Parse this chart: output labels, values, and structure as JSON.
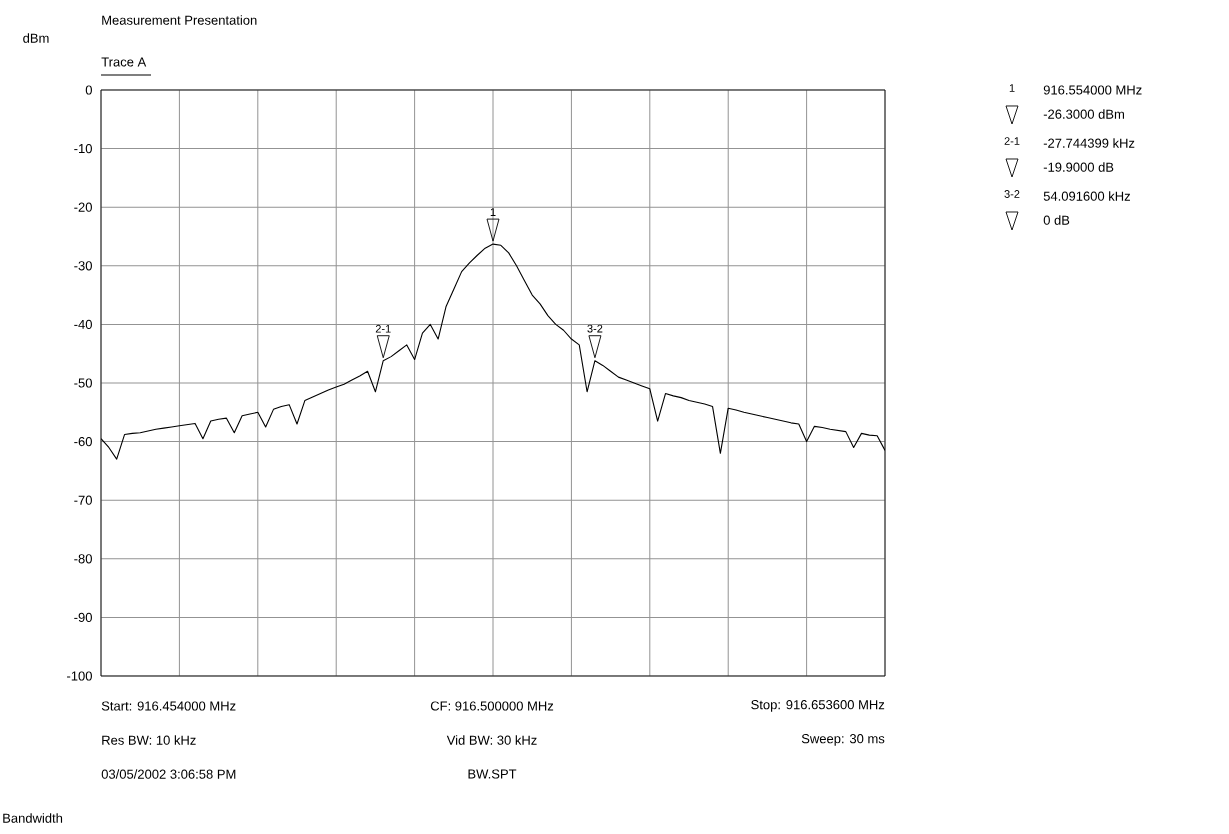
{
  "chart_data": {
    "type": "line",
    "title": "Measurement Presentation",
    "ylabel": "dBm",
    "categories": [
      null,
      null,
      null,
      null,
      null,
      null,
      null,
      null,
      null,
      null,
      null,
      null,
      null,
      null,
      null,
      null,
      null,
      null,
      null,
      null,
      null,
      null,
      null,
      null,
      null,
      null,
      null,
      null,
      null,
      null,
      null,
      null,
      null,
      null,
      null,
      null,
      null,
      null,
      null,
      null,
      null,
      null,
      null,
      null,
      null,
      null,
      null,
      null,
      null,
      null,
      null,
      null,
      null,
      null,
      null,
      null,
      null,
      null,
      null,
      null,
      null,
      null,
      null,
      null,
      null,
      null,
      null,
      null,
      null,
      null,
      null,
      null,
      null,
      null,
      null,
      null,
      null,
      null,
      null,
      null,
      null,
      null,
      null,
      null,
      null,
      null,
      null,
      null,
      null,
      null,
      null,
      null,
      null,
      null,
      null,
      null,
      null,
      null,
      null,
      null,
      null
    ],
    "ylim": [
      -100,
      0
    ],
    "yticks": [
      -100,
      -90,
      -80,
      -70,
      -60,
      -50,
      -40,
      -30,
      -20,
      -10,
      0
    ],
    "tick_labels": "y",
    "grid": true,
    "series": [
      {
        "name": "Trace A",
        "color": "#000000",
        "values": [
          -59.5,
          -61.0,
          -63.0,
          -58.8,
          -58.6,
          -58.5,
          -58.2,
          -57.9,
          -57.7,
          -57.5,
          -57.3,
          -57.1,
          -56.9,
          -59.5,
          -56.5,
          -56.2,
          -56.0,
          -58.5,
          -55.6,
          -55.3,
          -55.0,
          -57.5,
          -54.5,
          -54.0,
          -53.7,
          -57.0,
          -53.0,
          -52.4,
          -51.8,
          -51.2,
          -50.7,
          -50.2,
          -49.5,
          -48.8,
          -48.0,
          -51.5,
          -46.2,
          -45.5,
          -44.5,
          -43.5,
          -46.0,
          -41.5,
          -40.0,
          -42.5,
          -37.0,
          -34.0,
          -31.0,
          -29.5,
          -28.2,
          -27.0,
          -26.3,
          -26.5,
          -27.8,
          -30.0,
          -32.5,
          -35.0,
          -36.5,
          -38.5,
          -40.0,
          -41.0,
          -42.5,
          -43.5,
          -51.5,
          -46.2,
          -47.0,
          -48.0,
          -49.0,
          -49.5,
          -50.0,
          -50.5,
          -51.0,
          -56.5,
          -51.8,
          -52.2,
          -52.5,
          -53.0,
          -53.3,
          -53.6,
          -54.0,
          -62.0,
          -54.3,
          -54.6,
          -55.0,
          -55.3,
          -55.6,
          -55.9,
          -56.2,
          -56.5,
          -56.8,
          -57.0,
          -60.0,
          -57.4,
          -57.6,
          -57.9,
          -58.1,
          -58.3,
          -61.0,
          -58.6,
          -58.9,
          -59.0,
          -61.5
        ]
      }
    ],
    "annotations": [
      {
        "text": "1",
        "y": -26.3
      },
      {
        "text": "2-1",
        "y": -46.2
      },
      {
        "text": "3-2",
        "y": -46.2
      },
      "1",
      "916.554000 MHz",
      "-26.3000 dBm",
      "2-1",
      "-27.744399 kHz",
      "-19.9000 dB",
      "3-2",
      "54.091600 kHz",
      "0 dB",
      "Start: 916.454000 MHz",
      "CF: 916.500000 MHz",
      "Stop: 916.653600 MHz",
      "Res BW: 10 kHz",
      "Vid BW: 30 kHz",
      "Sweep: 30 ms",
      "03/05/2002 3:06:58 PM",
      "BW.SPT",
      "Bandwidth"
    ]
  }
}
